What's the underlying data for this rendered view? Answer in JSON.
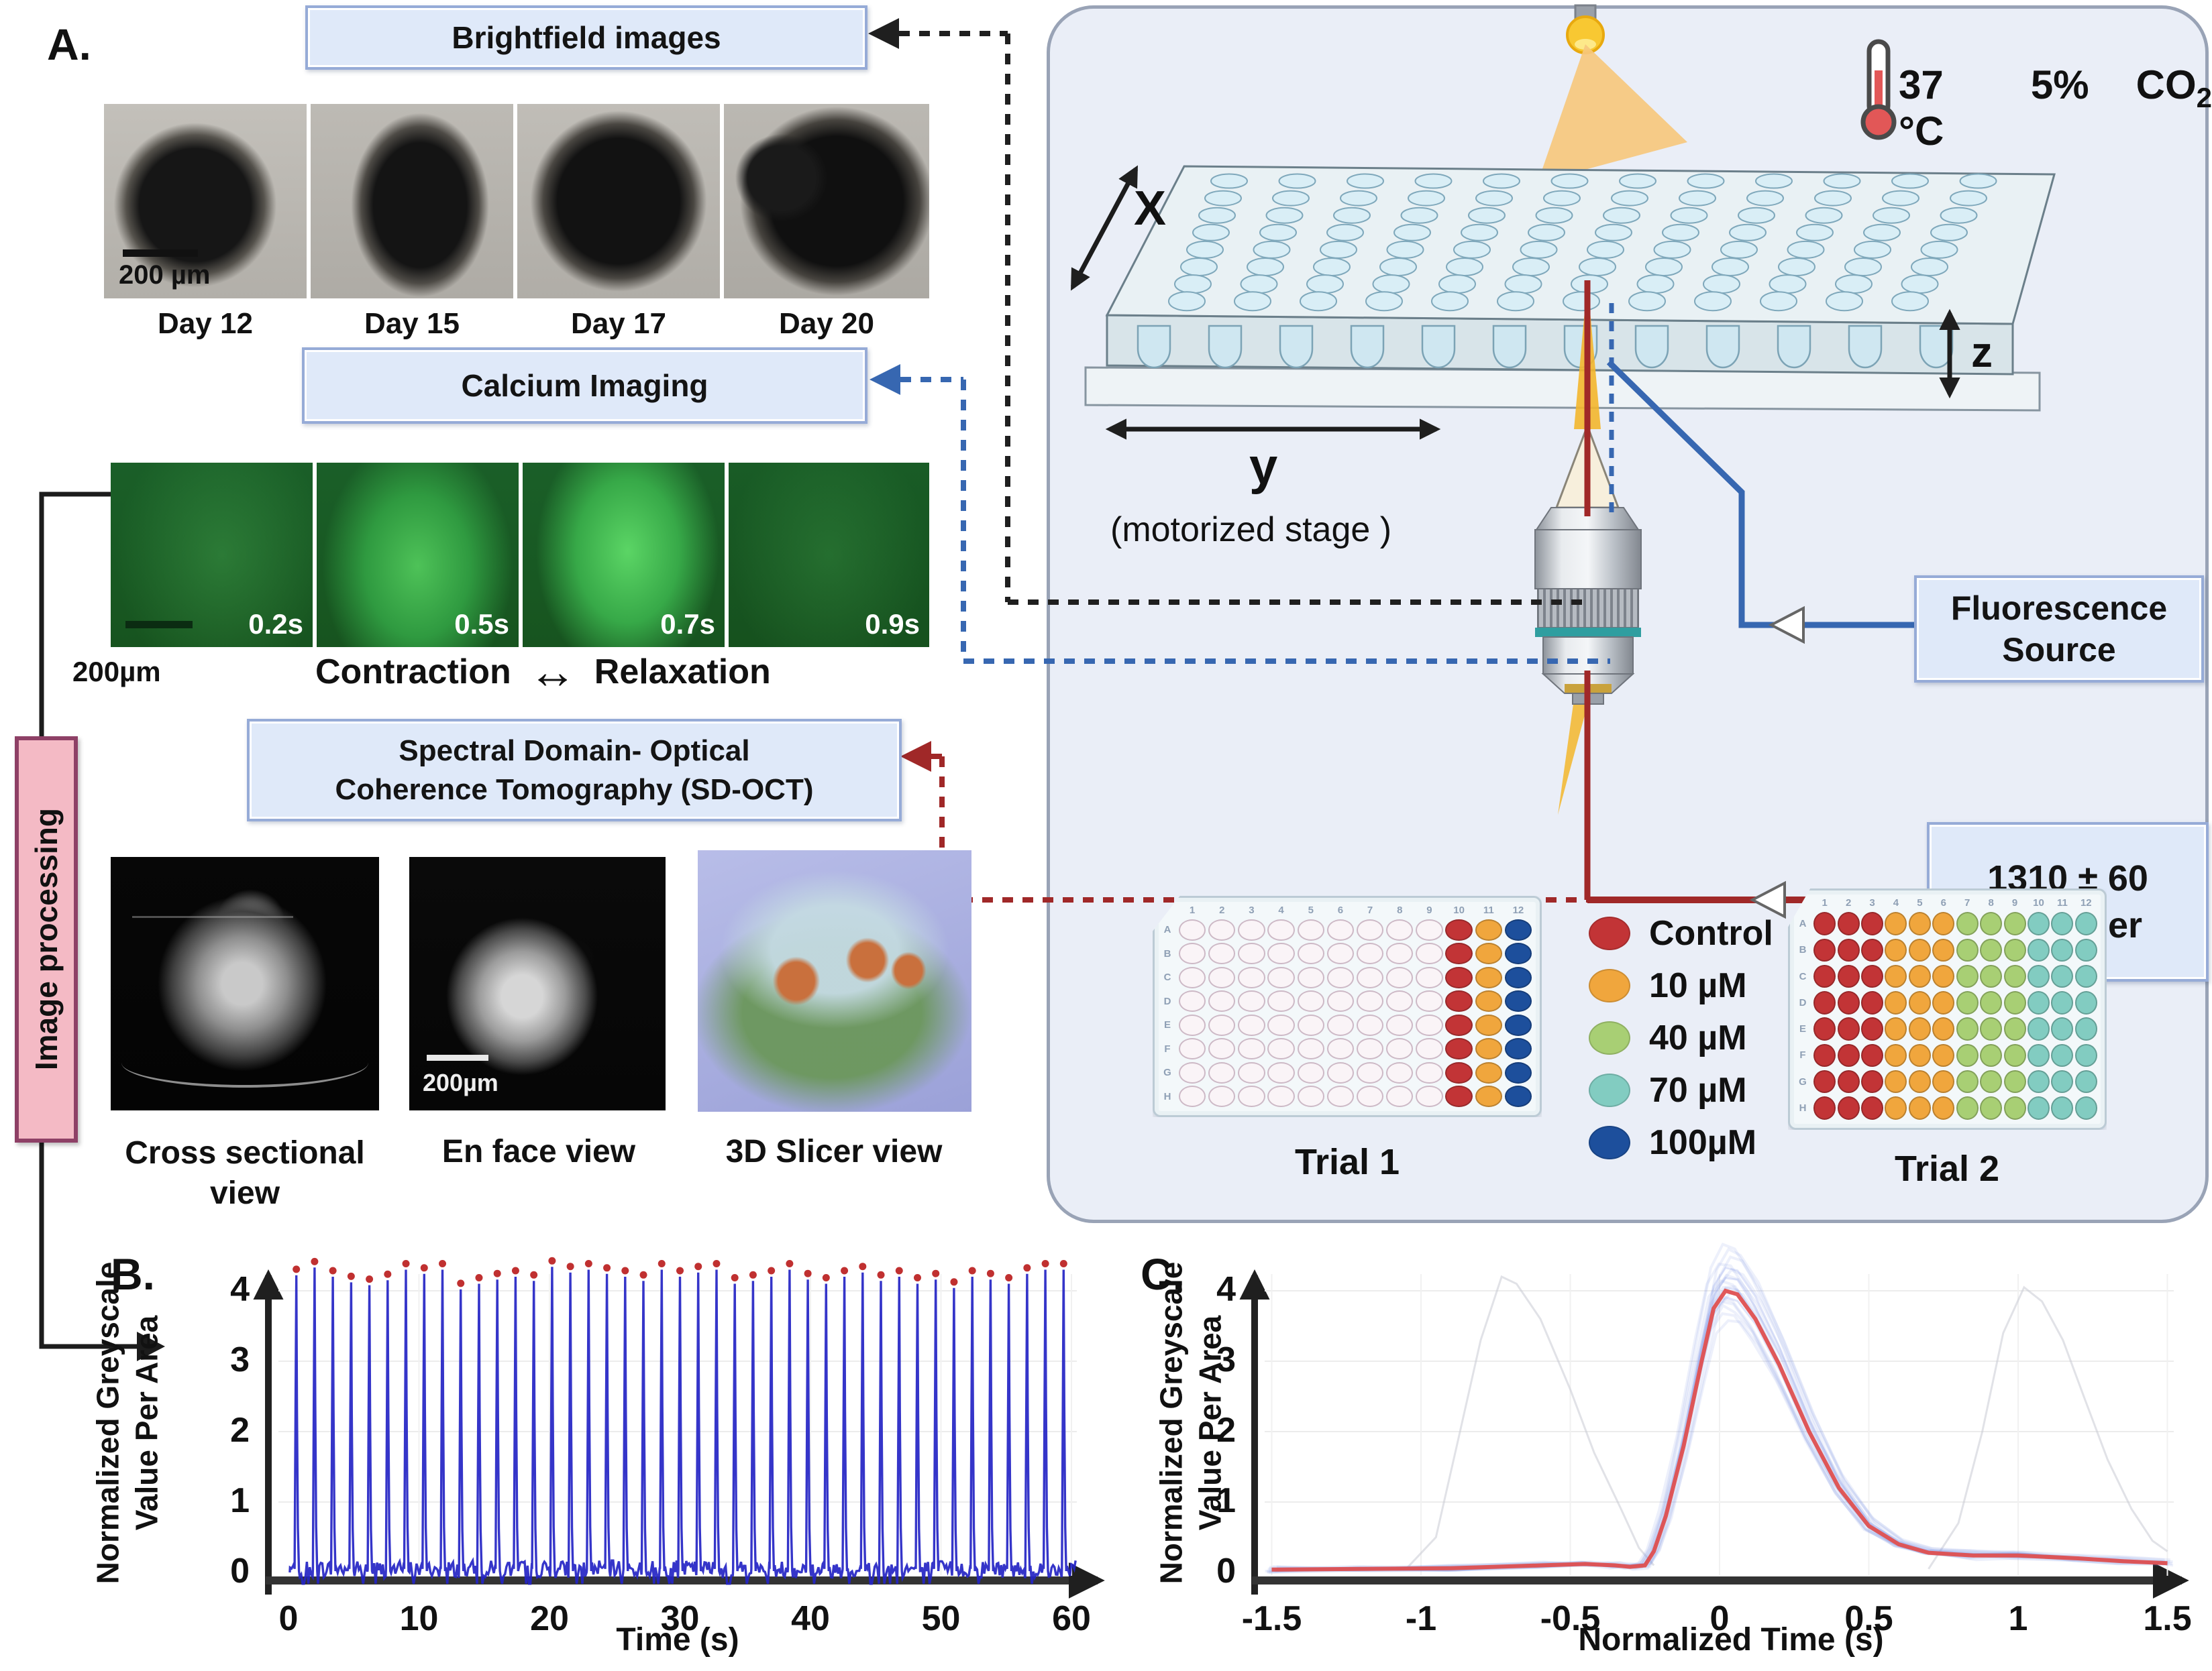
{
  "panel_labels": {
    "a": "A.",
    "b": "B.",
    "c": "C."
  },
  "flow_boxes": {
    "brightfield": "Brightfield images",
    "calcium": "Calcium Imaging",
    "sdoct": "Spectral Domain- Optical\nCoherence Tomography (SD-OCT)",
    "image_processing": "Image processing",
    "fluorescence": "Fluorescence\nSource",
    "laser": "1310 ± 60\nnm laser"
  },
  "brightfield": {
    "scale_bar": "200 µm",
    "days": [
      "Day 12",
      "Day 15",
      "Day 17",
      "Day 20"
    ]
  },
  "calcium": {
    "scale_bar": "200µm",
    "timepoints": [
      "0.2s",
      "0.5s",
      "0.7s",
      "0.9s"
    ],
    "contraction_label": "Contraction",
    "relaxation_label": "Relaxation",
    "arrow": "↔"
  },
  "oct": {
    "views": [
      "Cross sectional view",
      "En face view",
      "3D Slicer view"
    ],
    "enface_scale_bar": "200µm"
  },
  "incubator": {
    "temperature": "37 °C",
    "co2_value": "5%",
    "co2_gas": "CO",
    "co2_sub": "2"
  },
  "stage": {
    "x": "X",
    "y": "y",
    "z": "z",
    "caption": "(motorized stage )"
  },
  "legend": {
    "items": [
      {
        "label": "Control",
        "color": "#c23436"
      },
      {
        "label": "10 µM",
        "color": "#f0a63d"
      },
      {
        "label": "40 µM",
        "color": "#a8cf74"
      },
      {
        "label": "70 µM",
        "color": "#82ccc1"
      },
      {
        "label": "100µM",
        "color": "#1d4f9c"
      }
    ]
  },
  "plates": {
    "axis_cols": [
      "1",
      "2",
      "3",
      "4",
      "5",
      "6",
      "7",
      "8",
      "9",
      "10",
      "11",
      "12"
    ],
    "axis_rows": [
      "A",
      "B",
      "C",
      "D",
      "E",
      "F",
      "G",
      "H"
    ],
    "trial1": {
      "label": "Trial 1",
      "empty_color": "#faf4f7",
      "empty_border": "#cdb9c6",
      "column_colors": {
        "10": "#c23436",
        "11": "#f0a63d",
        "12": "#1d4f9c"
      }
    },
    "trial2": {
      "label": "Trial 2",
      "bands": [
        {
          "cols": [
            1,
            3
          ],
          "color": "#c23436"
        },
        {
          "cols": [
            4,
            6
          ],
          "color": "#f0a63d"
        },
        {
          "cols": [
            7,
            9
          ],
          "color": "#a8cf74"
        },
        {
          "cols": [
            10,
            12
          ],
          "color": "#82ccc1"
        }
      ]
    }
  },
  "chart_data": [
    {
      "panel": "B",
      "type": "line",
      "title": "",
      "xlabel": "Time (s)",
      "ylabel": "Normalized Greyscale\nValue Per Area",
      "xlim": [
        0,
        61
      ],
      "ylim": [
        -0.3,
        4.7
      ],
      "grid": true,
      "xticks": [
        {
          "v": 0,
          "label": "0"
        },
        {
          "v": 10,
          "label": "10"
        },
        {
          "v": 20,
          "label": "20"
        },
        {
          "v": 30,
          "label": "30"
        },
        {
          "v": 40,
          "label": "40"
        },
        {
          "v": 50,
          "label": "50"
        },
        {
          "v": 60,
          "label": "60"
        }
      ],
      "yticks": [
        {
          "v": 0,
          "label": "0"
        },
        {
          "v": 1,
          "label": "1"
        },
        {
          "v": 2,
          "label": "2"
        },
        {
          "v": 3,
          "label": "3"
        },
        {
          "v": 4,
          "label": "4"
        }
      ],
      "line_color": "#2424c4",
      "peak_marker_color": "#c03030",
      "description": "Calcium transient spike train over 60 s; each beat peak is marked with a red dot; baseline ~0",
      "beat_interval_s": 1.4,
      "peak_times": [
        0.6,
        2.0,
        3.4,
        4.8,
        6.2,
        7.6,
        9.0,
        10.4,
        11.8,
        13.2,
        14.6,
        16.0,
        17.4,
        18.8,
        20.2,
        21.6,
        23.0,
        24.4,
        25.8,
        27.2,
        28.6,
        30.0,
        31.4,
        32.8,
        34.2,
        35.6,
        37.0,
        38.4,
        39.8,
        41.2,
        42.6,
        44.0,
        45.4,
        46.8,
        48.2,
        49.6,
        51.0,
        52.4,
        53.8,
        55.2,
        56.6,
        58.0,
        59.4
      ],
      "peak_values": [
        4.22,
        4.33,
        4.2,
        4.12,
        4.08,
        4.15,
        4.3,
        4.24,
        4.3,
        4.02,
        4.1,
        4.16,
        4.2,
        4.14,
        4.34,
        4.26,
        4.3,
        4.24,
        4.2,
        4.14,
        4.3,
        4.2,
        4.26,
        4.3,
        4.1,
        4.14,
        4.2,
        4.3,
        4.16,
        4.1,
        4.2,
        4.26,
        4.14,
        4.2,
        4.1,
        4.16,
        4.04,
        4.2,
        4.16,
        4.1,
        4.24,
        4.3,
        4.3
      ]
    },
    {
      "panel": "C",
      "type": "line",
      "title": "",
      "xlabel": "Normalized Time (s)",
      "ylabel": "Normalized Greyscale\nValue Per Area",
      "xlim": [
        -1.6,
        1.6
      ],
      "ylim": [
        -0.3,
        4.7
      ],
      "grid": true,
      "xticks": [
        {
          "v": -1.5,
          "label": "-1.5"
        },
        {
          "v": -1,
          "label": "-1"
        },
        {
          "v": -0.5,
          "label": "-0.5"
        },
        {
          "v": 0,
          "label": "0"
        },
        {
          "v": 0.5,
          "label": "0.5"
        },
        {
          "v": 1,
          "label": "1"
        },
        {
          "v": 1.5,
          "label": "1.5"
        }
      ],
      "yticks": [
        {
          "v": 0,
          "label": "0"
        },
        {
          "v": 1,
          "label": "1"
        },
        {
          "v": 2,
          "label": "2"
        },
        {
          "v": 3,
          "label": "3"
        },
        {
          "v": 4,
          "label": "4"
        }
      ],
      "mean_color": "#df5050",
      "band_color": "#8093e6",
      "ghost_color": "#c9cbd4",
      "n_band_traces": 14,
      "description": "Overlaid peak-aligned calcium transients; red = mean trace peaking ~4.0 at t=0, light blue = individual traces, faint grey = unaligned neighbouring transients peaking near -0.7 s and +1.0 s",
      "mean_curve": [
        [
          -1.5,
          0.04
        ],
        [
          -1.2,
          0.05
        ],
        [
          -0.9,
          0.06
        ],
        [
          -0.6,
          0.1
        ],
        [
          -0.45,
          0.12
        ],
        [
          -0.35,
          0.1
        ],
        [
          -0.3,
          0.08
        ],
        [
          -0.25,
          0.1
        ],
        [
          -0.22,
          0.3
        ],
        [
          -0.18,
          0.8
        ],
        [
          -0.12,
          1.8
        ],
        [
          -0.06,
          3.0
        ],
        [
          -0.02,
          3.75
        ],
        [
          0.02,
          4.0
        ],
        [
          0.06,
          3.95
        ],
        [
          0.12,
          3.6
        ],
        [
          0.2,
          2.95
        ],
        [
          0.3,
          2.0
        ],
        [
          0.4,
          1.2
        ],
        [
          0.5,
          0.66
        ],
        [
          0.6,
          0.4
        ],
        [
          0.7,
          0.28
        ],
        [
          0.85,
          0.24
        ],
        [
          1.0,
          0.24
        ],
        [
          1.2,
          0.2
        ],
        [
          1.35,
          0.16
        ],
        [
          1.5,
          0.13
        ]
      ],
      "ghost_traces": [
        [
          [
            -1.05,
            0.05
          ],
          [
            -0.95,
            0.5
          ],
          [
            -0.88,
            1.8
          ],
          [
            -0.8,
            3.3
          ],
          [
            -0.73,
            4.2
          ],
          [
            -0.68,
            4.1
          ],
          [
            -0.6,
            3.6
          ],
          [
            -0.5,
            2.6
          ],
          [
            -0.42,
            1.7
          ],
          [
            -0.33,
            0.9
          ],
          [
            -0.27,
            0.35
          ],
          [
            -0.22,
            0.1
          ]
        ],
        [
          [
            0.7,
            0.05
          ],
          [
            0.8,
            0.7
          ],
          [
            0.88,
            2.0
          ],
          [
            0.95,
            3.4
          ],
          [
            1.02,
            4.05
          ],
          [
            1.08,
            3.85
          ],
          [
            1.15,
            3.3
          ],
          [
            1.22,
            2.5
          ],
          [
            1.3,
            1.6
          ],
          [
            1.38,
            0.9
          ],
          [
            1.45,
            0.45
          ],
          [
            1.5,
            0.3
          ]
        ]
      ]
    }
  ]
}
